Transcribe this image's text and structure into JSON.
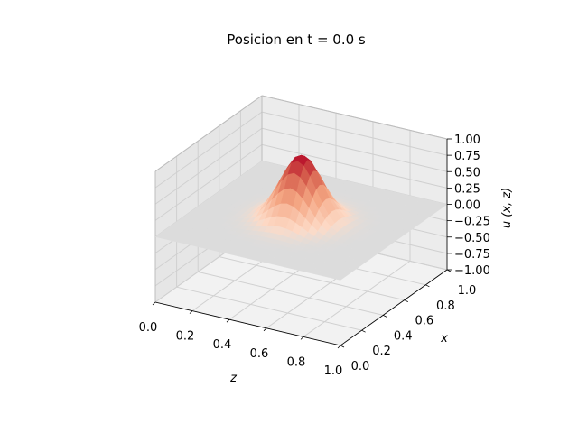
{
  "chart_data": {
    "type": "surface3d",
    "title": "Posicion en t = 0.0 s",
    "z_label": "z",
    "x_label": "x",
    "u_label": "u (x, z)",
    "z_ticks": [
      "0.0",
      "0.2",
      "0.4",
      "0.6",
      "0.8",
      "1.0"
    ],
    "x_ticks": [
      "0.0",
      "0.2",
      "0.4",
      "0.6",
      "0.8",
      "1.0"
    ],
    "u_ticks": [
      "1.00",
      "0.75",
      "0.50",
      "0.25",
      "0.00",
      "−0.25",
      "−0.50",
      "−0.75",
      "−1.00"
    ],
    "z_range": [
      0,
      1
    ],
    "x_range": [
      0,
      1
    ],
    "u_range": [
      -1,
      1
    ],
    "surface": {
      "function": "gaussian",
      "center_x": 0.5,
      "center_z": 0.5,
      "peak": 1.0,
      "width": 0.1,
      "grid": 31
    },
    "colormap": "RdBu_r",
    "colors": {
      "pane": "#f2f2f2",
      "grid": "#d0d0d0",
      "flat_surface": "#dcdcdc",
      "peak": "#b40426"
    },
    "grid": true
  }
}
